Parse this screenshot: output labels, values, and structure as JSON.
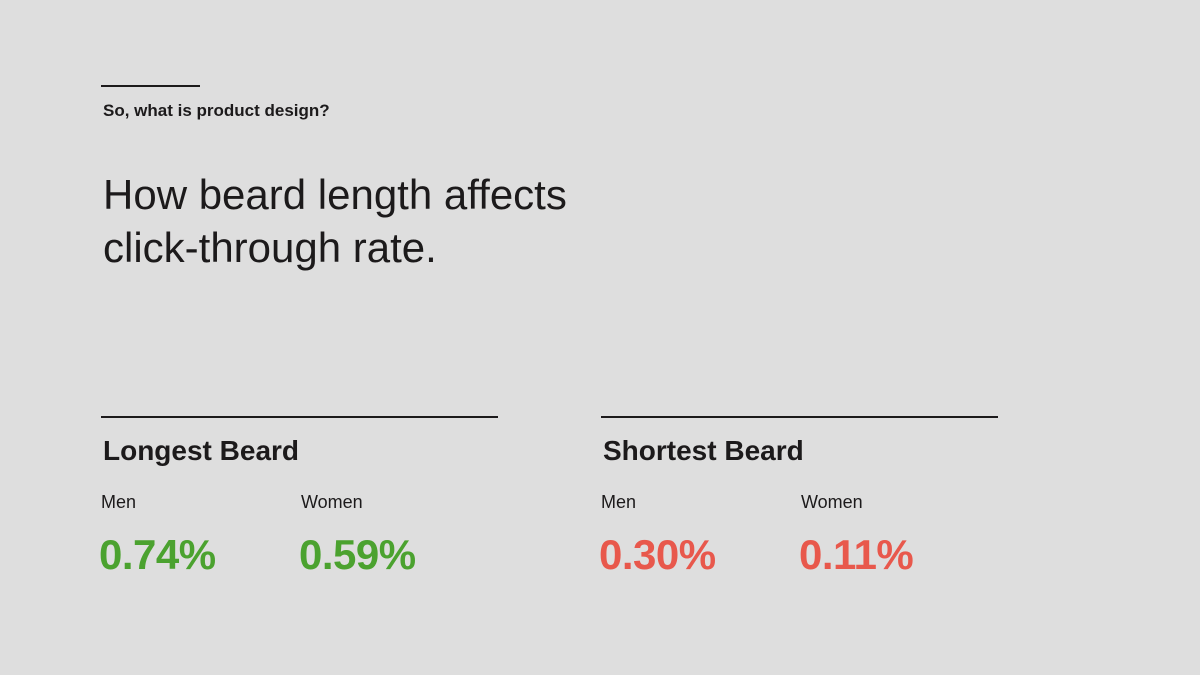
{
  "header": {
    "kicker": "So, what is product design?",
    "title_lines": [
      "How beard length affects",
      "click-through rate."
    ]
  },
  "groups": [
    {
      "title": "Longest Beard",
      "color": "#4ba22f",
      "stats": [
        {
          "label": "Men",
          "value": "0.74%"
        },
        {
          "label": "Women",
          "value": "0.59%"
        }
      ]
    },
    {
      "title": "Shortest Beard",
      "color": "#e8584c",
      "stats": [
        {
          "label": "Men",
          "value": "0.30%"
        },
        {
          "label": "Women",
          "value": "0.11%"
        }
      ]
    }
  ]
}
